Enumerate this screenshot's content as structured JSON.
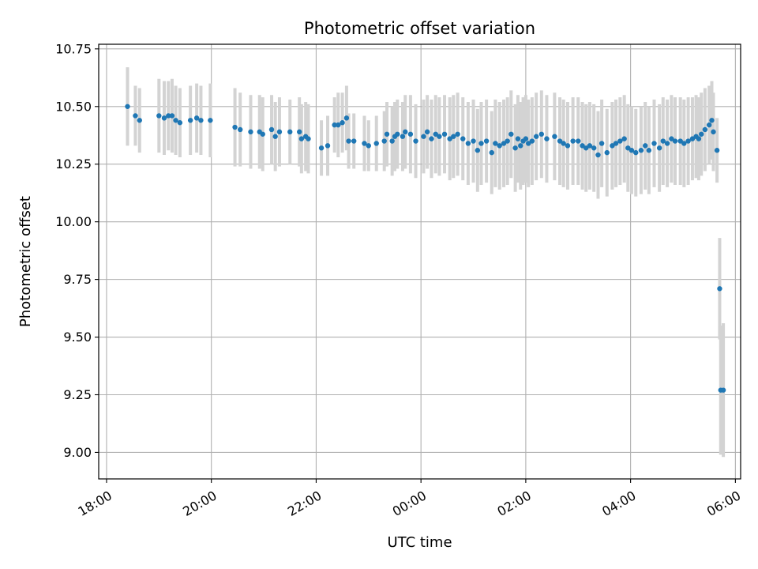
{
  "chart_data": {
    "type": "scatter",
    "title": "Photometric offset variation",
    "xlabel": "UTC time",
    "ylabel": "Photometric offset",
    "x_unit": "hours since 18:00 UTC",
    "xlim": [
      -0.15,
      12.1
    ],
    "ylim": [
      8.885,
      10.77
    ],
    "xticks": [
      {
        "value": 0,
        "label": "18:00"
      },
      {
        "value": 2,
        "label": "20:00"
      },
      {
        "value": 4,
        "label": "22:00"
      },
      {
        "value": 6,
        "label": "00:00"
      },
      {
        "value": 8,
        "label": "02:00"
      },
      {
        "value": 10,
        "label": "04:00"
      },
      {
        "value": 12,
        "label": "06:00"
      }
    ],
    "yticks": [
      {
        "value": 9.0,
        "label": "9.00"
      },
      {
        "value": 9.25,
        "label": "9.25"
      },
      {
        "value": 9.5,
        "label": "9.50"
      },
      {
        "value": 9.75,
        "label": "9.75"
      },
      {
        "value": 10.0,
        "label": "10.00"
      },
      {
        "value": 10.25,
        "label": "10.25"
      },
      {
        "value": 10.5,
        "label": "10.50"
      },
      {
        "value": 10.75,
        "label": "10.75"
      }
    ],
    "grid": true,
    "marker_color": "#1f77b4",
    "errorbar_color": "#d3d3d3",
    "series": [
      {
        "name": "Photometric offset",
        "x": [
          0.4,
          0.55,
          0.63,
          1.0,
          1.1,
          1.18,
          1.25,
          1.32,
          1.4,
          1.6,
          1.72,
          1.8,
          1.98,
          2.45,
          2.55,
          2.75,
          2.92,
          2.98,
          3.15,
          3.22,
          3.3,
          3.5,
          3.68,
          3.72,
          3.8,
          3.85,
          4.1,
          4.22,
          4.35,
          4.42,
          4.5,
          4.58,
          4.62,
          4.72,
          4.92,
          5.0,
          5.15,
          5.3,
          5.35,
          5.45,
          5.5,
          5.55,
          5.65,
          5.7,
          5.8,
          5.9,
          6.05,
          6.12,
          6.2,
          6.28,
          6.35,
          6.45,
          6.55,
          6.62,
          6.7,
          6.8,
          6.9,
          7.0,
          7.08,
          7.15,
          7.25,
          7.35,
          7.42,
          7.5,
          7.58,
          7.65,
          7.72,
          7.8,
          7.85,
          7.9,
          7.95,
          8.0,
          8.05,
          8.12,
          8.2,
          8.3,
          8.4,
          8.55,
          8.65,
          8.72,
          8.8,
          8.9,
          9.0,
          9.08,
          9.15,
          9.22,
          9.3,
          9.38,
          9.45,
          9.55,
          9.65,
          9.72,
          9.8,
          9.88,
          9.95,
          10.02,
          10.1,
          10.2,
          10.28,
          10.35,
          10.45,
          10.55,
          10.62,
          10.7,
          10.78,
          10.85,
          10.95,
          11.02,
          11.1,
          11.18,
          11.25,
          11.3,
          11.35,
          11.42,
          11.5,
          11.55,
          11.58,
          11.65,
          11.7,
          11.72,
          11.77
        ],
        "y": [
          10.5,
          10.46,
          10.44,
          10.46,
          10.45,
          10.46,
          10.46,
          10.44,
          10.43,
          10.44,
          10.45,
          10.44,
          10.44,
          10.41,
          10.4,
          10.39,
          10.39,
          10.38,
          10.4,
          10.37,
          10.39,
          10.39,
          10.39,
          10.36,
          10.37,
          10.36,
          10.32,
          10.33,
          10.42,
          10.42,
          10.43,
          10.45,
          10.35,
          10.35,
          10.34,
          10.33,
          10.34,
          10.35,
          10.38,
          10.35,
          10.37,
          10.38,
          10.37,
          10.39,
          10.38,
          10.35,
          10.37,
          10.39,
          10.36,
          10.38,
          10.37,
          10.38,
          10.36,
          10.37,
          10.38,
          10.36,
          10.34,
          10.35,
          10.31,
          10.34,
          10.35,
          10.3,
          10.34,
          10.33,
          10.34,
          10.35,
          10.38,
          10.32,
          10.36,
          10.33,
          10.35,
          10.36,
          10.34,
          10.35,
          10.37,
          10.38,
          10.36,
          10.37,
          10.35,
          10.34,
          10.33,
          10.35,
          10.35,
          10.33,
          10.32,
          10.33,
          10.32,
          10.29,
          10.34,
          10.3,
          10.33,
          10.34,
          10.35,
          10.36,
          10.32,
          10.31,
          10.3,
          10.31,
          10.33,
          10.31,
          10.34,
          10.32,
          10.35,
          10.34,
          10.36,
          10.35,
          10.35,
          10.34,
          10.35,
          10.36,
          10.37,
          10.36,
          10.38,
          10.4,
          10.42,
          10.44,
          10.39,
          10.31,
          9.71,
          9.27,
          9.27
        ],
        "yerr": [
          0.17,
          0.13,
          0.14,
          0.16,
          0.16,
          0.15,
          0.16,
          0.15,
          0.15,
          0.15,
          0.15,
          0.15,
          0.16,
          0.17,
          0.16,
          0.16,
          0.16,
          0.16,
          0.15,
          0.15,
          0.15,
          0.14,
          0.15,
          0.15,
          0.15,
          0.15,
          0.12,
          0.13,
          0.12,
          0.14,
          0.13,
          0.14,
          0.12,
          0.12,
          0.12,
          0.11,
          0.12,
          0.13,
          0.14,
          0.15,
          0.15,
          0.15,
          0.15,
          0.16,
          0.17,
          0.16,
          0.16,
          0.16,
          0.17,
          0.17,
          0.17,
          0.17,
          0.18,
          0.18,
          0.18,
          0.18,
          0.18,
          0.18,
          0.18,
          0.18,
          0.18,
          0.18,
          0.19,
          0.19,
          0.19,
          0.19,
          0.19,
          0.19,
          0.19,
          0.19,
          0.19,
          0.19,
          0.19,
          0.19,
          0.19,
          0.19,
          0.19,
          0.19,
          0.19,
          0.19,
          0.19,
          0.19,
          0.19,
          0.19,
          0.19,
          0.19,
          0.19,
          0.19,
          0.19,
          0.19,
          0.19,
          0.19,
          0.19,
          0.19,
          0.19,
          0.19,
          0.19,
          0.19,
          0.19,
          0.19,
          0.19,
          0.19,
          0.19,
          0.19,
          0.19,
          0.19,
          0.19,
          0.19,
          0.19,
          0.18,
          0.18,
          0.18,
          0.18,
          0.18,
          0.17,
          0.17,
          0.17,
          0.14,
          0.22,
          0.28,
          0.29
        ]
      }
    ]
  }
}
